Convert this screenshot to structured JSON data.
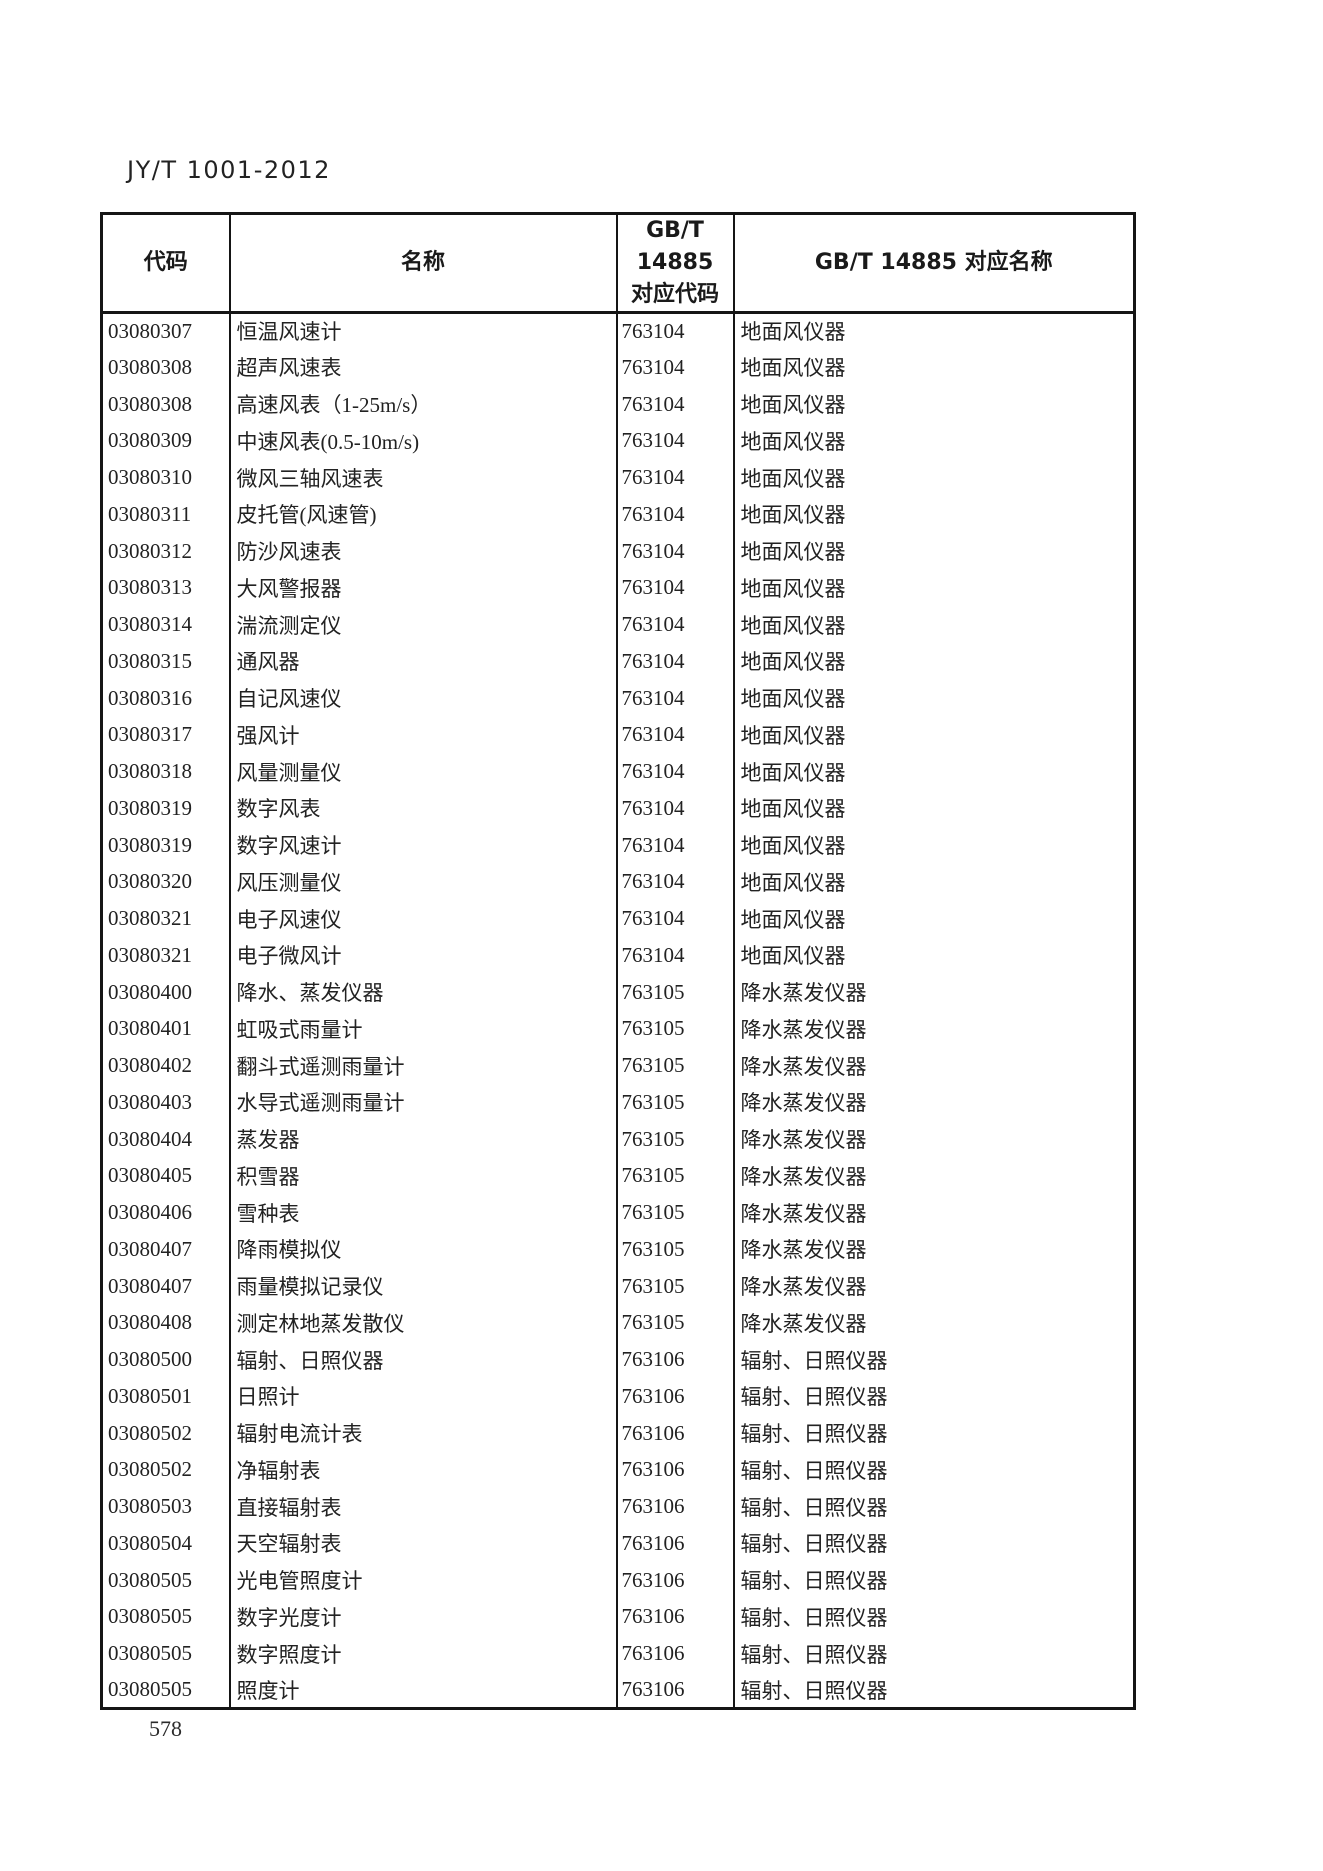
{
  "page": {
    "doc_code": "JY/T 1001-2012",
    "page_number": "578"
  },
  "table": {
    "header": {
      "col_code": "代码",
      "col_name": "名称",
      "col_gb_code_line1": "GB/T 14885",
      "col_gb_code_line2": "对应代码",
      "col_gb_name": "GB/T 14885 对应名称"
    },
    "rows": [
      {
        "code": "03080307",
        "name": "恒温风速计",
        "gb_code": "763104",
        "gb_name": "地面风仪器"
      },
      {
        "code": "03080308",
        "name": "超声风速表",
        "gb_code": "763104",
        "gb_name": "地面风仪器"
      },
      {
        "code": "03080308",
        "name": "高速风表（1-25m/s）",
        "gb_code": "763104",
        "gb_name": "地面风仪器"
      },
      {
        "code": "03080309",
        "name": "中速风表(0.5-10m/s)",
        "gb_code": "763104",
        "gb_name": "地面风仪器"
      },
      {
        "code": "03080310",
        "name": "微风三轴风速表",
        "gb_code": "763104",
        "gb_name": "地面风仪器"
      },
      {
        "code": "03080311",
        "name": "皮托管(风速管)",
        "gb_code": "763104",
        "gb_name": "地面风仪器"
      },
      {
        "code": "03080312",
        "name": "防沙风速表",
        "gb_code": "763104",
        "gb_name": "地面风仪器"
      },
      {
        "code": "03080313",
        "name": "大风警报器",
        "gb_code": "763104",
        "gb_name": "地面风仪器"
      },
      {
        "code": "03080314",
        "name": "湍流测定仪",
        "gb_code": "763104",
        "gb_name": "地面风仪器"
      },
      {
        "code": "03080315",
        "name": "通风器",
        "gb_code": "763104",
        "gb_name": "地面风仪器"
      },
      {
        "code": "03080316",
        "name": "自记风速仪",
        "gb_code": "763104",
        "gb_name": "地面风仪器"
      },
      {
        "code": "03080317",
        "name": "强风计",
        "gb_code": "763104",
        "gb_name": "地面风仪器"
      },
      {
        "code": "03080318",
        "name": "风量测量仪",
        "gb_code": "763104",
        "gb_name": "地面风仪器"
      },
      {
        "code": "03080319",
        "name": "数字风表",
        "gb_code": "763104",
        "gb_name": "地面风仪器"
      },
      {
        "code": "03080319",
        "name": "数字风速计",
        "gb_code": "763104",
        "gb_name": "地面风仪器"
      },
      {
        "code": "03080320",
        "name": "风压测量仪",
        "gb_code": "763104",
        "gb_name": "地面风仪器"
      },
      {
        "code": "03080321",
        "name": "电子风速仪",
        "gb_code": "763104",
        "gb_name": "地面风仪器"
      },
      {
        "code": "03080321",
        "name": "电子微风计",
        "gb_code": "763104",
        "gb_name": "地面风仪器"
      },
      {
        "code": "03080400",
        "name": "降水、蒸发仪器",
        "gb_code": "763105",
        "gb_name": "降水蒸发仪器"
      },
      {
        "code": "03080401",
        "name": "虹吸式雨量计",
        "gb_code": "763105",
        "gb_name": "降水蒸发仪器"
      },
      {
        "code": "03080402",
        "name": "翻斗式遥测雨量计",
        "gb_code": "763105",
        "gb_name": "降水蒸发仪器"
      },
      {
        "code": "03080403",
        "name": "水导式遥测雨量计",
        "gb_code": "763105",
        "gb_name": "降水蒸发仪器"
      },
      {
        "code": "03080404",
        "name": "蒸发器",
        "gb_code": "763105",
        "gb_name": "降水蒸发仪器"
      },
      {
        "code": "03080405",
        "name": "积雪器",
        "gb_code": "763105",
        "gb_name": "降水蒸发仪器"
      },
      {
        "code": "03080406",
        "name": "雪种表",
        "gb_code": "763105",
        "gb_name": "降水蒸发仪器"
      },
      {
        "code": "03080407",
        "name": "降雨模拟仪",
        "gb_code": "763105",
        "gb_name": "降水蒸发仪器"
      },
      {
        "code": "03080407",
        "name": "雨量模拟记录仪",
        "gb_code": "763105",
        "gb_name": "降水蒸发仪器"
      },
      {
        "code": "03080408",
        "name": "测定林地蒸发散仪",
        "gb_code": "763105",
        "gb_name": "降水蒸发仪器"
      },
      {
        "code": "03080500",
        "name": "辐射、日照仪器",
        "gb_code": "763106",
        "gb_name": "辐射、日照仪器"
      },
      {
        "code": "03080501",
        "name": "日照计",
        "gb_code": "763106",
        "gb_name": "辐射、日照仪器"
      },
      {
        "code": "03080502",
        "name": "辐射电流计表",
        "gb_code": "763106",
        "gb_name": "辐射、日照仪器"
      },
      {
        "code": "03080502",
        "name": "净辐射表",
        "gb_code": "763106",
        "gb_name": "辐射、日照仪器"
      },
      {
        "code": "03080503",
        "name": "直接辐射表",
        "gb_code": "763106",
        "gb_name": "辐射、日照仪器"
      },
      {
        "code": "03080504",
        "name": "天空辐射表",
        "gb_code": "763106",
        "gb_name": "辐射、日照仪器"
      },
      {
        "code": "03080505",
        "name": "光电管照度计",
        "gb_code": "763106",
        "gb_name": "辐射、日照仪器"
      },
      {
        "code": "03080505",
        "name": "数字光度计",
        "gb_code": "763106",
        "gb_name": "辐射、日照仪器"
      },
      {
        "code": "03080505",
        "name": "数字照度计",
        "gb_code": "763106",
        "gb_name": "辐射、日照仪器"
      },
      {
        "code": "03080505",
        "name": "照度计",
        "gb_code": "763106",
        "gb_name": "辐射、日照仪器"
      }
    ]
  }
}
